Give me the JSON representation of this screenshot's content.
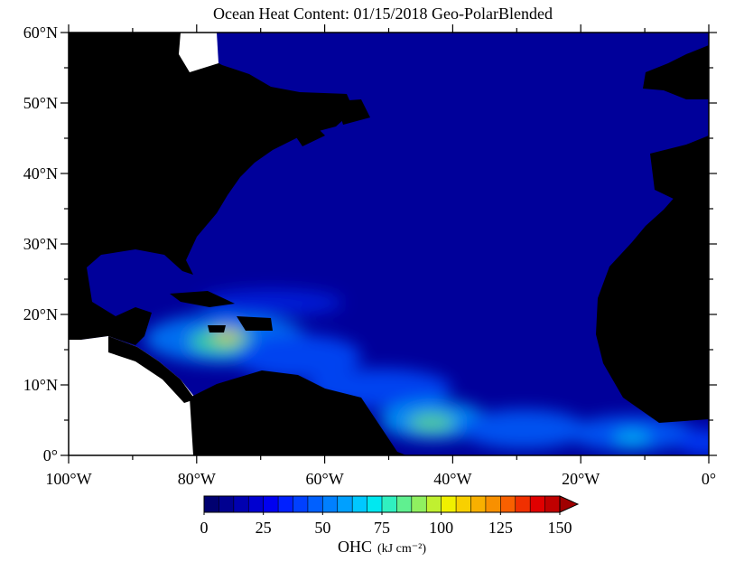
{
  "map": {
    "title": "Ocean Heat Content: 01/15/2018 Geo-PolarBlended",
    "xlim": [
      -100,
      0
    ],
    "ylim": [
      0,
      60
    ],
    "xticks": [
      {
        "value": -100,
        "label": "100°W"
      },
      {
        "value": -80,
        "label": "80°W"
      },
      {
        "value": -60,
        "label": "60°W"
      },
      {
        "value": -40,
        "label": "40°W"
      },
      {
        "value": -20,
        "label": "20°W"
      },
      {
        "value": 0,
        "label": "0°"
      }
    ],
    "xminorticks": [
      -90,
      -70,
      -50,
      -30,
      -10
    ],
    "yticks": [
      {
        "value": 0,
        "label": "0°"
      },
      {
        "value": 10,
        "label": "10°N"
      },
      {
        "value": 20,
        "label": "20°N"
      },
      {
        "value": 30,
        "label": "30°N"
      },
      {
        "value": 40,
        "label": "40°N"
      },
      {
        "value": 50,
        "label": "50°N"
      },
      {
        "value": 60,
        "label": "60°N"
      }
    ],
    "yminorticks": [
      5,
      15,
      25,
      35,
      45,
      55
    ],
    "ocean_color": "#00009a",
    "land_color": "#000000",
    "colorbar": {
      "label": "OHC",
      "units": "(kJ cm⁻²)",
      "lim": [
        0,
        150
      ],
      "ticks": [
        0,
        25,
        50,
        75,
        100,
        125,
        150
      ],
      "colors": [
        "#000070",
        "#000090",
        "#0000b0",
        "#0000d0",
        "#0000f0",
        "#0020ff",
        "#0040ff",
        "#0060ff",
        "#0080ff",
        "#00a0ff",
        "#00c8ff",
        "#00e8f0",
        "#30f0c0",
        "#60f090",
        "#90f060",
        "#c0f030",
        "#f0f000",
        "#f8d000",
        "#f8b000",
        "#f89000",
        "#f86000",
        "#f03000",
        "#e00000",
        "#c00000"
      ],
      "over_color": "#a00000"
    }
  }
}
